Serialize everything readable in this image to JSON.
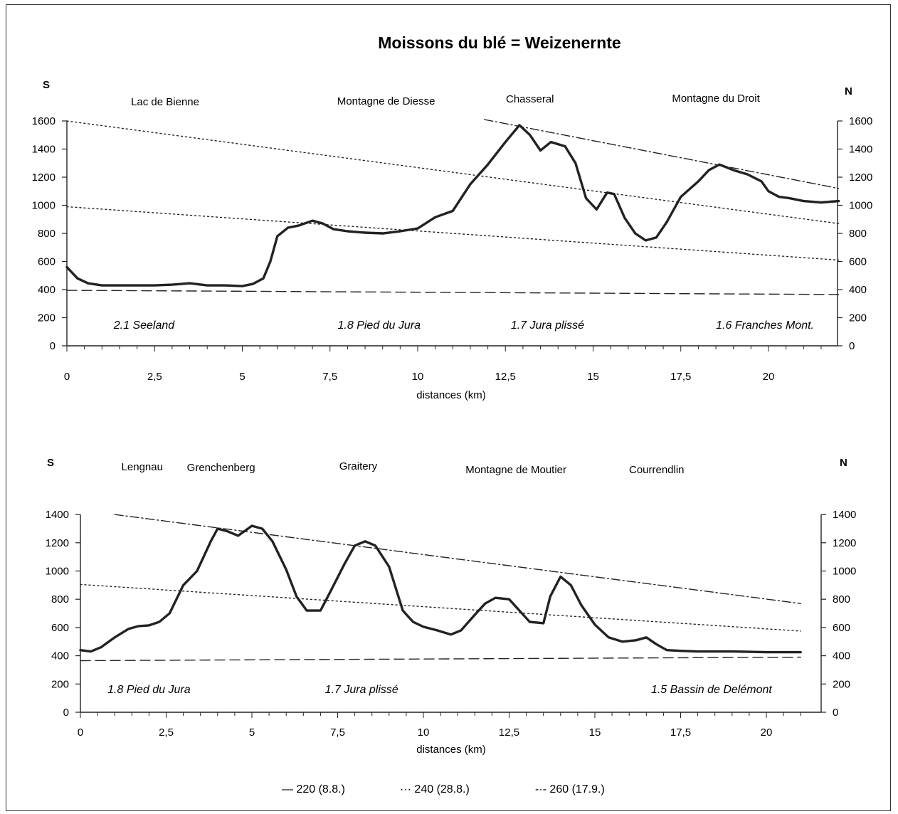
{
  "title": "Moissons du blé = Weizenernte",
  "legend": [
    {
      "label": "— 220 (8.8.)",
      "style": "dashed"
    },
    {
      "label": "··· 240 (28.8.)",
      "style": "dotted"
    },
    {
      "label": "-·- 260 (17.9.)",
      "style": "dashdot"
    }
  ],
  "chart_data": [
    {
      "type": "line",
      "xlabel": "distances (km)",
      "x_ticks": [
        "0",
        "2,5",
        "5",
        "7,5",
        "10",
        "12,5",
        "15",
        "17,5",
        "20"
      ],
      "y_ticks": [
        "0",
        "200",
        "400",
        "600",
        "800",
        "1000",
        "1200",
        "1400",
        "1600"
      ],
      "xlim": [
        0,
        22
      ],
      "ylim": [
        0,
        1600
      ],
      "south_label": "S",
      "north_label": "N",
      "places": [
        {
          "label": "Lac de Bienne",
          "x": 2.8
        },
        {
          "label": "Montagne de Diesse",
          "x": 9.1
        },
        {
          "label": "Chasseral",
          "x": 13.2
        },
        {
          "label": "Montagne du Droit",
          "x": 18.5
        }
      ],
      "regions": [
        {
          "label": "2.1 Seeland",
          "x": 2.2
        },
        {
          "label": "1.8 Pied du Jura",
          "x": 8.9
        },
        {
          "label": "1.7 Jura plissé",
          "x": 13.7
        },
        {
          "label": "1.6 Franches Mont.",
          "x": 19.9
        }
      ],
      "series": [
        {
          "style": "solid",
          "points": [
            [
              0,
              560
            ],
            [
              0.3,
              480
            ],
            [
              0.6,
              445
            ],
            [
              1,
              430
            ],
            [
              1.5,
              430
            ],
            [
              2,
              430
            ],
            [
              2.5,
              430
            ],
            [
              3,
              435
            ],
            [
              3.5,
              445
            ],
            [
              4,
              430
            ],
            [
              4.5,
              430
            ],
            [
              5,
              425
            ],
            [
              5.3,
              440
            ],
            [
              5.6,
              480
            ],
            [
              5.8,
              600
            ],
            [
              6,
              780
            ],
            [
              6.3,
              840
            ],
            [
              6.6,
              855
            ],
            [
              7,
              890
            ],
            [
              7.3,
              870
            ],
            [
              7.6,
              830
            ],
            [
              8,
              815
            ],
            [
              8.5,
              805
            ],
            [
              9,
              800
            ],
            [
              9.5,
              815
            ],
            [
              10,
              835
            ],
            [
              10.5,
              915
            ],
            [
              11,
              960
            ],
            [
              11.5,
              1150
            ],
            [
              12,
              1290
            ],
            [
              12.5,
              1450
            ],
            [
              12.9,
              1570
            ],
            [
              13.2,
              1500
            ],
            [
              13.5,
              1390
            ],
            [
              13.8,
              1450
            ],
            [
              14.2,
              1420
            ],
            [
              14.5,
              1300
            ],
            [
              14.8,
              1050
            ],
            [
              15.1,
              970
            ],
            [
              15.4,
              1090
            ],
            [
              15.6,
              1080
            ],
            [
              15.9,
              910
            ],
            [
              16.2,
              800
            ],
            [
              16.5,
              750
            ],
            [
              16.8,
              770
            ],
            [
              17.1,
              880
            ],
            [
              17.5,
              1060
            ],
            [
              18,
              1170
            ],
            [
              18.3,
              1250
            ],
            [
              18.6,
              1290
            ],
            [
              19,
              1250
            ],
            [
              19.4,
              1220
            ],
            [
              19.8,
              1170
            ],
            [
              20,
              1100
            ],
            [
              20.3,
              1060
            ],
            [
              20.6,
              1050
            ],
            [
              21,
              1030
            ],
            [
              21.5,
              1020
            ],
            [
              22,
              1030
            ]
          ]
        },
        {
          "style": "dashed",
          "points": [
            [
              0,
              395
            ],
            [
              22,
              365
            ]
          ]
        },
        {
          "style": "dotted",
          "points": [
            [
              0,
              990
            ],
            [
              22,
              610
            ]
          ]
        },
        {
          "style": "dotted",
          "points": [
            [
              0,
              1600
            ],
            [
              22,
              870
            ]
          ]
        },
        {
          "style": "dashdot",
          "points": [
            [
              11.9,
              1610
            ],
            [
              22,
              1120
            ]
          ]
        }
      ]
    },
    {
      "type": "line",
      "xlabel": "distances (km)",
      "x_ticks": [
        "0",
        "2,5",
        "5",
        "7,5",
        "10",
        "12,5",
        "15",
        "17,5",
        "20"
      ],
      "y_ticks": [
        "0",
        "200",
        "400",
        "600",
        "800",
        "1000",
        "1200",
        "1400"
      ],
      "xlim": [
        0,
        21
      ],
      "ylim": [
        0,
        1400
      ],
      "south_label": "S",
      "north_label": "N",
      "places": [
        {
          "label": "Lengnau",
          "x": 1.8
        },
        {
          "label": "Grenchenberg",
          "x": 4.1
        },
        {
          "label": "Graitery",
          "x": 8.1
        },
        {
          "label": "Montagne de Moutier",
          "x": 12.7
        },
        {
          "label": "Courrendlin",
          "x": 16.8
        }
      ],
      "regions": [
        {
          "label": "1.8 Pied du Jura",
          "x": 2.0
        },
        {
          "label": "1.7 Jura plissé",
          "x": 8.2
        },
        {
          "label": "1.5 Bassin de Delémont",
          "x": 18.4
        }
      ],
      "series": [
        {
          "style": "solid",
          "points": [
            [
              0,
              440
            ],
            [
              0.3,
              430
            ],
            [
              0.6,
              460
            ],
            [
              1,
              530
            ],
            [
              1.4,
              590
            ],
            [
              1.7,
              610
            ],
            [
              2,
              615
            ],
            [
              2.3,
              640
            ],
            [
              2.6,
              700
            ],
            [
              3,
              900
            ],
            [
              3.4,
              1000
            ],
            [
              3.8,
              1210
            ],
            [
              4,
              1300
            ],
            [
              4.3,
              1280
            ],
            [
              4.6,
              1250
            ],
            [
              5,
              1320
            ],
            [
              5.3,
              1300
            ],
            [
              5.6,
              1210
            ],
            [
              6,
              1010
            ],
            [
              6.3,
              820
            ],
            [
              6.6,
              720
            ],
            [
              7,
              720
            ],
            [
              7.3,
              860
            ],
            [
              7.7,
              1050
            ],
            [
              8,
              1180
            ],
            [
              8.3,
              1210
            ],
            [
              8.6,
              1180
            ],
            [
              9,
              1030
            ],
            [
              9.4,
              720
            ],
            [
              9.7,
              640
            ],
            [
              10,
              605
            ],
            [
              10.4,
              580
            ],
            [
              10.8,
              550
            ],
            [
              11.1,
              580
            ],
            [
              11.5,
              690
            ],
            [
              11.8,
              770
            ],
            [
              12.1,
              810
            ],
            [
              12.5,
              800
            ],
            [
              12.8,
              720
            ],
            [
              13.1,
              640
            ],
            [
              13.5,
              630
            ],
            [
              13.7,
              820
            ],
            [
              14,
              960
            ],
            [
              14.3,
              900
            ],
            [
              14.6,
              760
            ],
            [
              15,
              620
            ],
            [
              15.4,
              530
            ],
            [
              15.8,
              500
            ],
            [
              16.2,
              510
            ],
            [
              16.5,
              530
            ],
            [
              16.8,
              480
            ],
            [
              17.1,
              440
            ],
            [
              17.5,
              435
            ],
            [
              18,
              430
            ],
            [
              19,
              430
            ],
            [
              20,
              425
            ],
            [
              21,
              425
            ]
          ]
        },
        {
          "style": "dashed",
          "points": [
            [
              0,
              365
            ],
            [
              21,
              390
            ]
          ]
        },
        {
          "style": "dotted",
          "points": [
            [
              0,
              905
            ],
            [
              21,
              575
            ]
          ]
        },
        {
          "style": "dashdot",
          "points": [
            [
              1,
              1400
            ],
            [
              21,
              770
            ]
          ]
        }
      ]
    }
  ]
}
